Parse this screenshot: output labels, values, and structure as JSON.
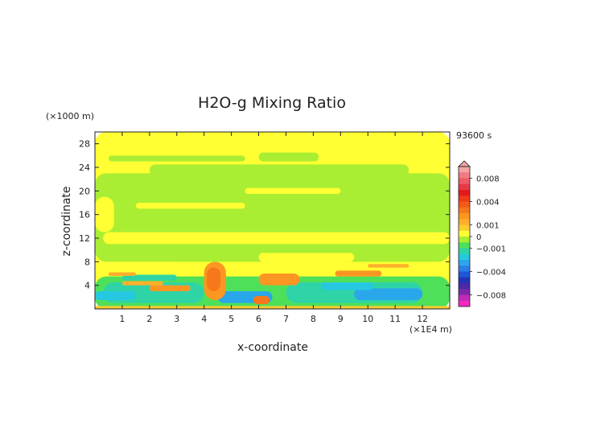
{
  "chart_data": {
    "type": "heatmap",
    "title": "H2O-g Mixing Ratio",
    "time_label": "93600 s",
    "xlabel": "x-coordinate",
    "ylabel": "z-coordinate",
    "x_unit": "(×1E4 m)",
    "y_unit": "(×1000 m)",
    "xlim": [
      0,
      13
    ],
    "ylim": [
      0,
      30
    ],
    "x_ticks": [
      1,
      2,
      3,
      4,
      5,
      6,
      7,
      8,
      9,
      10,
      11,
      12
    ],
    "y_ticks": [
      4,
      8,
      12,
      16,
      20,
      24,
      28
    ],
    "colorbar": {
      "vmin": -0.01,
      "vmax": 0.01,
      "labels": [
        {
          "value": 0.008,
          "text": "0.008"
        },
        {
          "value": 0.004,
          "text": "0.004"
        },
        {
          "value": 0.001,
          "text": "0.001"
        },
        {
          "value": 0,
          "text": "0"
        },
        {
          "value": -0.001,
          "text": "−0.001"
        },
        {
          "value": -0.004,
          "text": "−0.004"
        },
        {
          "value": -0.008,
          "text": "−0.008"
        }
      ],
      "bands": [
        {
          "lo": 0.009,
          "hi": 0.01,
          "color": "#f4a3a8"
        },
        {
          "lo": 0.008,
          "hi": 0.009,
          "color": "#f27a84"
        },
        {
          "lo": 0.007,
          "hi": 0.008,
          "color": "#ee5a66"
        },
        {
          "lo": 0.006,
          "hi": 0.007,
          "color": "#e83848"
        },
        {
          "lo": 0.005,
          "hi": 0.006,
          "color": "#e31a1c"
        },
        {
          "lo": 0.004,
          "hi": 0.005,
          "color": "#f03a1a"
        },
        {
          "lo": 0.003,
          "hi": 0.004,
          "color": "#f55a14"
        },
        {
          "lo": 0.002,
          "hi": 0.003,
          "color": "#f7781a"
        },
        {
          "lo": 0.0015,
          "hi": 0.002,
          "color": "#fb9622"
        },
        {
          "lo": 0.001,
          "hi": 0.0015,
          "color": "#fdaf2a"
        },
        {
          "lo": 0.0005,
          "hi": 0.001,
          "color": "#fecb30"
        },
        {
          "lo": 0.0,
          "hi": 0.0005,
          "color": "#ffff33"
        },
        {
          "lo": -0.0005,
          "hi": 0.0,
          "color": "#aaee33"
        },
        {
          "lo": -0.001,
          "hi": -0.0005,
          "color": "#4fe05a"
        },
        {
          "lo": -0.0015,
          "hi": -0.001,
          "color": "#2fd4a6"
        },
        {
          "lo": -0.002,
          "hi": -0.0015,
          "color": "#25c8e0"
        },
        {
          "lo": -0.003,
          "hi": -0.002,
          "color": "#2aa6ea"
        },
        {
          "lo": -0.004,
          "hi": -0.003,
          "color": "#2b7ee8"
        },
        {
          "lo": -0.005,
          "hi": -0.004,
          "color": "#1f55d8"
        },
        {
          "lo": -0.006,
          "hi": -0.005,
          "color": "#2233b8"
        },
        {
          "lo": -0.007,
          "hi": -0.006,
          "color": "#4a2aa8"
        },
        {
          "lo": -0.008,
          "hi": -0.007,
          "color": "#7a2aa8"
        },
        {
          "lo": -0.009,
          "hi": -0.008,
          "color": "#c12ab8"
        },
        {
          "lo": -0.01,
          "hi": -0.009,
          "color": "#f22ac0"
        }
      ]
    },
    "field_regions": [
      {
        "x0": 0,
        "x1": 13,
        "z0": 0,
        "z1": 30,
        "value": 0.0003
      },
      {
        "x0": 0,
        "x1": 13,
        "z0": 8,
        "z1": 23,
        "value": -0.0003
      },
      {
        "x0": 0.3,
        "x1": 13,
        "z0": 11,
        "z1": 13,
        "value": 0.0003
      },
      {
        "x0": 1.5,
        "x1": 5.5,
        "z0": 17,
        "z1": 18,
        "value": 0.0003
      },
      {
        "x0": 2,
        "x1": 11.5,
        "z0": 22.5,
        "z1": 24.5,
        "value": -0.0003
      },
      {
        "x0": 0.5,
        "x1": 5.5,
        "z0": 25,
        "z1": 26,
        "value": -0.0003
      },
      {
        "x0": 6,
        "x1": 8.2,
        "z0": 25,
        "z1": 26.5,
        "value": -0.0003
      },
      {
        "x0": 2,
        "x1": 7.5,
        "z0": 21,
        "z1": 21.8,
        "value": -0.0003
      },
      {
        "x0": 0,
        "x1": 0.7,
        "z0": 13,
        "z1": 19,
        "value": 0.0003
      },
      {
        "x0": 5.5,
        "x1": 9,
        "z0": 19.5,
        "z1": 20.5,
        "value": 0.0003
      },
      {
        "x0": 0,
        "x1": 13,
        "z0": 0,
        "z1": 5.5,
        "value": -0.0007
      },
      {
        "x0": 0.5,
        "x1": 3,
        "z0": 7,
        "z1": 8,
        "value": 0.0003
      },
      {
        "x0": 6,
        "x1": 9.5,
        "z0": 8,
        "z1": 9.5,
        "value": 0.0003
      },
      {
        "x0": 1,
        "x1": 3,
        "z0": 4.8,
        "z1": 5.8,
        "value": -0.0012
      },
      {
        "x0": 0.3,
        "x1": 4,
        "z0": 1,
        "z1": 4.5,
        "value": -0.0012
      },
      {
        "x0": 7,
        "x1": 12,
        "z0": 1,
        "z1": 4.5,
        "value": -0.0012
      },
      {
        "x0": 9.5,
        "x1": 12,
        "z0": 1.5,
        "z1": 3.5,
        "value": -0.0025
      },
      {
        "x0": 4.5,
        "x1": 6.5,
        "z0": 1,
        "z1": 3,
        "value": -0.0025
      },
      {
        "x0": 0,
        "x1": 13,
        "z0": 0,
        "z1": 0.5,
        "value": 0.0008
      },
      {
        "x0": 0.5,
        "x1": 1.5,
        "z0": 5.6,
        "z1": 6.2,
        "value": 0.0012
      },
      {
        "x0": 1,
        "x1": 2.5,
        "z0": 4,
        "z1": 4.7,
        "value": 0.0012
      },
      {
        "x0": 2,
        "x1": 3.5,
        "z0": 3,
        "z1": 4,
        "value": 0.0017
      },
      {
        "x0": 4,
        "x1": 4.8,
        "z0": 1.5,
        "z1": 8,
        "value": 0.0017
      },
      {
        "x0": 4.1,
        "x1": 4.6,
        "z0": 3,
        "z1": 7,
        "value": 0.0028
      },
      {
        "x0": 6,
        "x1": 7.5,
        "z0": 4,
        "z1": 6,
        "value": 0.0017
      },
      {
        "x0": 8.8,
        "x1": 10.5,
        "z0": 5.5,
        "z1": 6.5,
        "value": 0.0017
      },
      {
        "x0": 10,
        "x1": 11.5,
        "z0": 7,
        "z1": 7.6,
        "value": 0.0012
      },
      {
        "x0": 5.8,
        "x1": 6.4,
        "z0": 0.8,
        "z1": 2.2,
        "value": 0.0028
      },
      {
        "x0": 8.3,
        "x1": 10.2,
        "z0": 3.2,
        "z1": 4.5,
        "value": -0.0017
      },
      {
        "x0": 0,
        "x1": 1.5,
        "z0": 1.5,
        "z1": 3,
        "value": -0.0017
      }
    ]
  }
}
